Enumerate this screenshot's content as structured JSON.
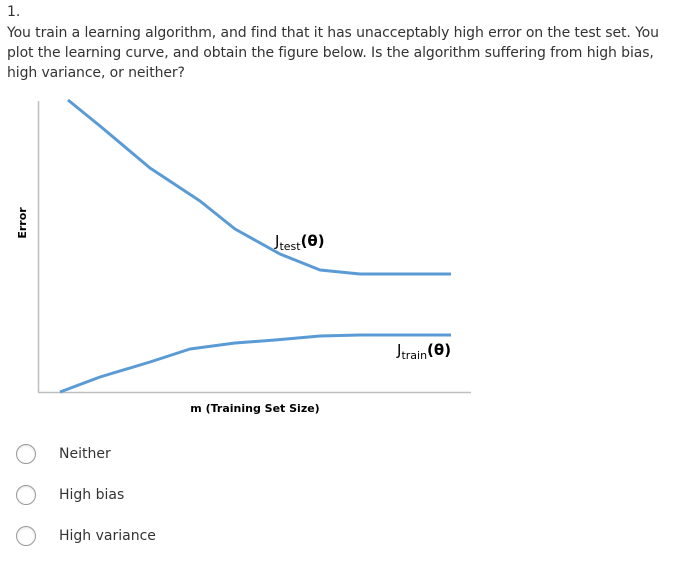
{
  "question": {
    "number": "1.",
    "text": "You train a learning algorithm, and find that it has unacceptably high error on the test set. You plot the learning curve, and obtain the figure below. Is the algorithm suffering from high bias, high variance, or neither?"
  },
  "figure": {
    "y_axis_label": "Error",
    "x_axis_label": "m (Training Set Size)",
    "test_curve_label": {
      "base": "J",
      "subscript": "test",
      "suffix": "(θ)"
    },
    "train_curve_label": {
      "base": "J",
      "subscript": "train",
      "suffix": "(θ)"
    },
    "curve_color": "#5b9bd5",
    "axis_color": "#bfbfbf"
  },
  "options": [
    {
      "label": "Neither",
      "selected": false
    },
    {
      "label": "High bias",
      "selected": false
    },
    {
      "label": "High variance",
      "selected": false
    }
  ]
}
